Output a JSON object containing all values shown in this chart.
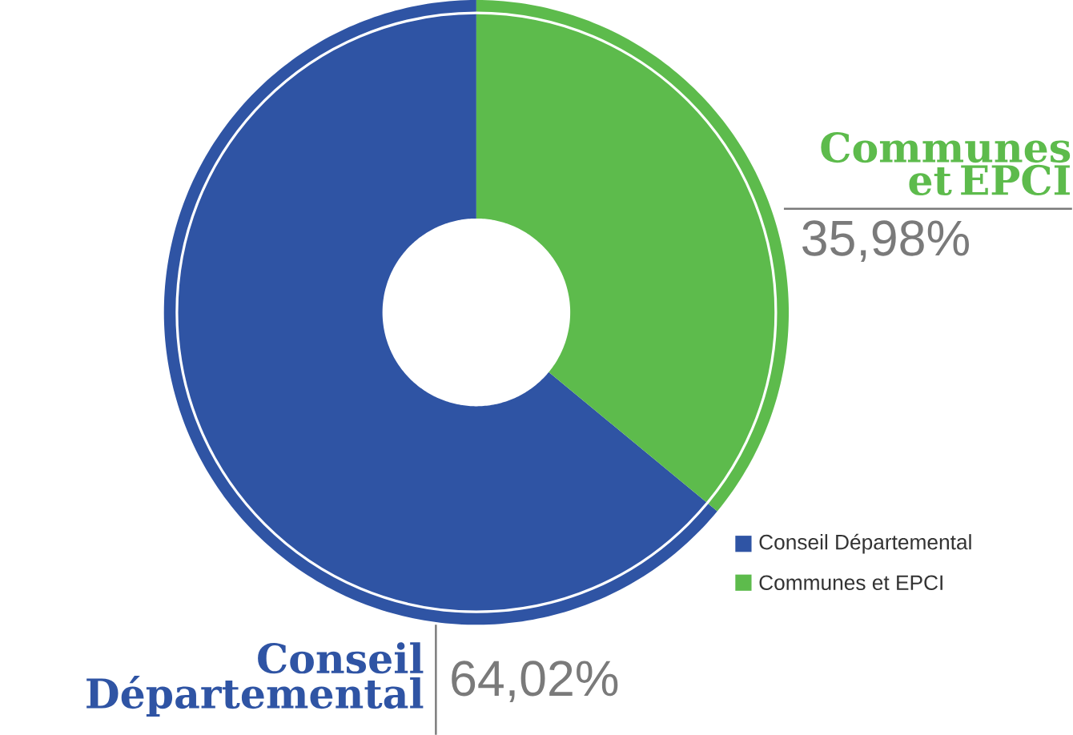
{
  "chart_data": {
    "type": "donut",
    "categories": [
      "Conseil Départemental",
      "Communes et EPCI"
    ],
    "values": [
      64.02,
      35.98
    ],
    "colors": [
      "#2f54a4",
      "#5dbb4c"
    ],
    "value_labels": [
      "64,02%",
      "35,98%"
    ],
    "legend": "bottom right"
  }
}
